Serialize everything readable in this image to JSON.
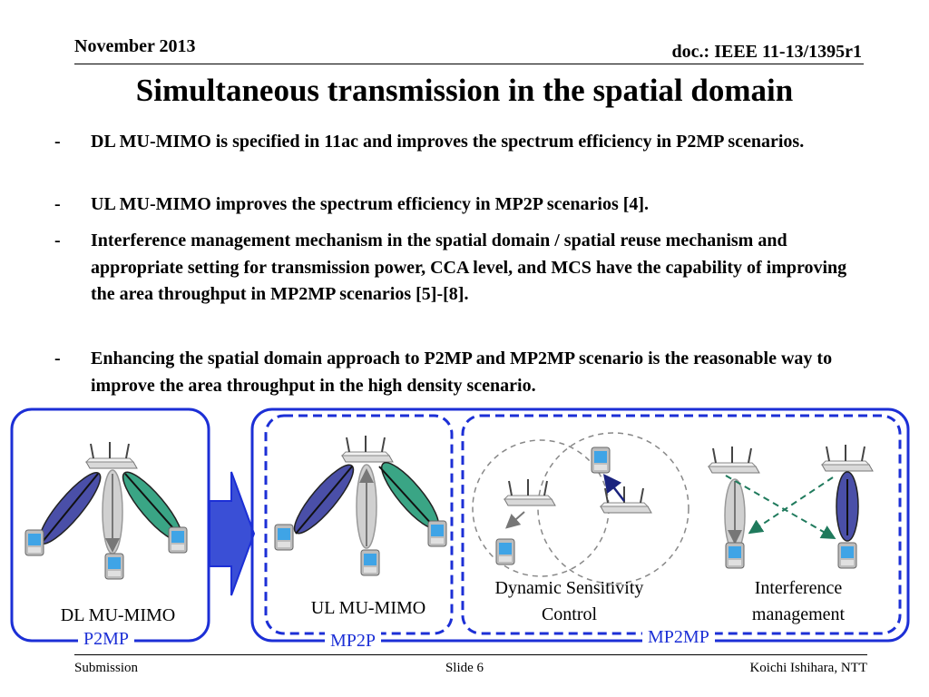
{
  "header": {
    "date": "November 2013",
    "doc_id": "doc.: IEEE 11-13/1395r1"
  },
  "title": "Simultaneous transmission in the spatial domain",
  "bullets": [
    {
      "marker": "-",
      "text": "DL MU-MIMO is specified in 11ac and improves the spectrum efficiency in P2MP scenarios."
    },
    {
      "marker": "-",
      "text": "UL MU-MIMO improves the spectrum efficiency in MP2P scenarios [4]."
    },
    {
      "marker": "-",
      "text": "Interference management mechanism in the spatial domain / spatial reuse mechanism and appropriate setting for transmission power, CCA level, and MCS have the capability of improving the area throughput in MP2MP scenarios [5]-[8]."
    },
    {
      "marker": "-",
      "text": "Enhancing the spatial domain approach to P2MP and MP2MP scenario is the reasonable way to improve the area throughput  in the high density scenario."
    }
  ],
  "diagram": {
    "dl_label": "DL MU-MIMO",
    "p2mp_tag": "P2MP",
    "ul_label": "UL MU-MIMO",
    "mp2p_tag": "MP2P",
    "dsc_label": "Dynamic Sensitivity Control",
    "im_label": "Interference management",
    "mp2mp_tag": "MP2MP",
    "accent_color": "#1c2fd6"
  },
  "footer": {
    "left": "Submission",
    "center": "Slide 6",
    "right": "Koichi Ishihara, NTT"
  }
}
